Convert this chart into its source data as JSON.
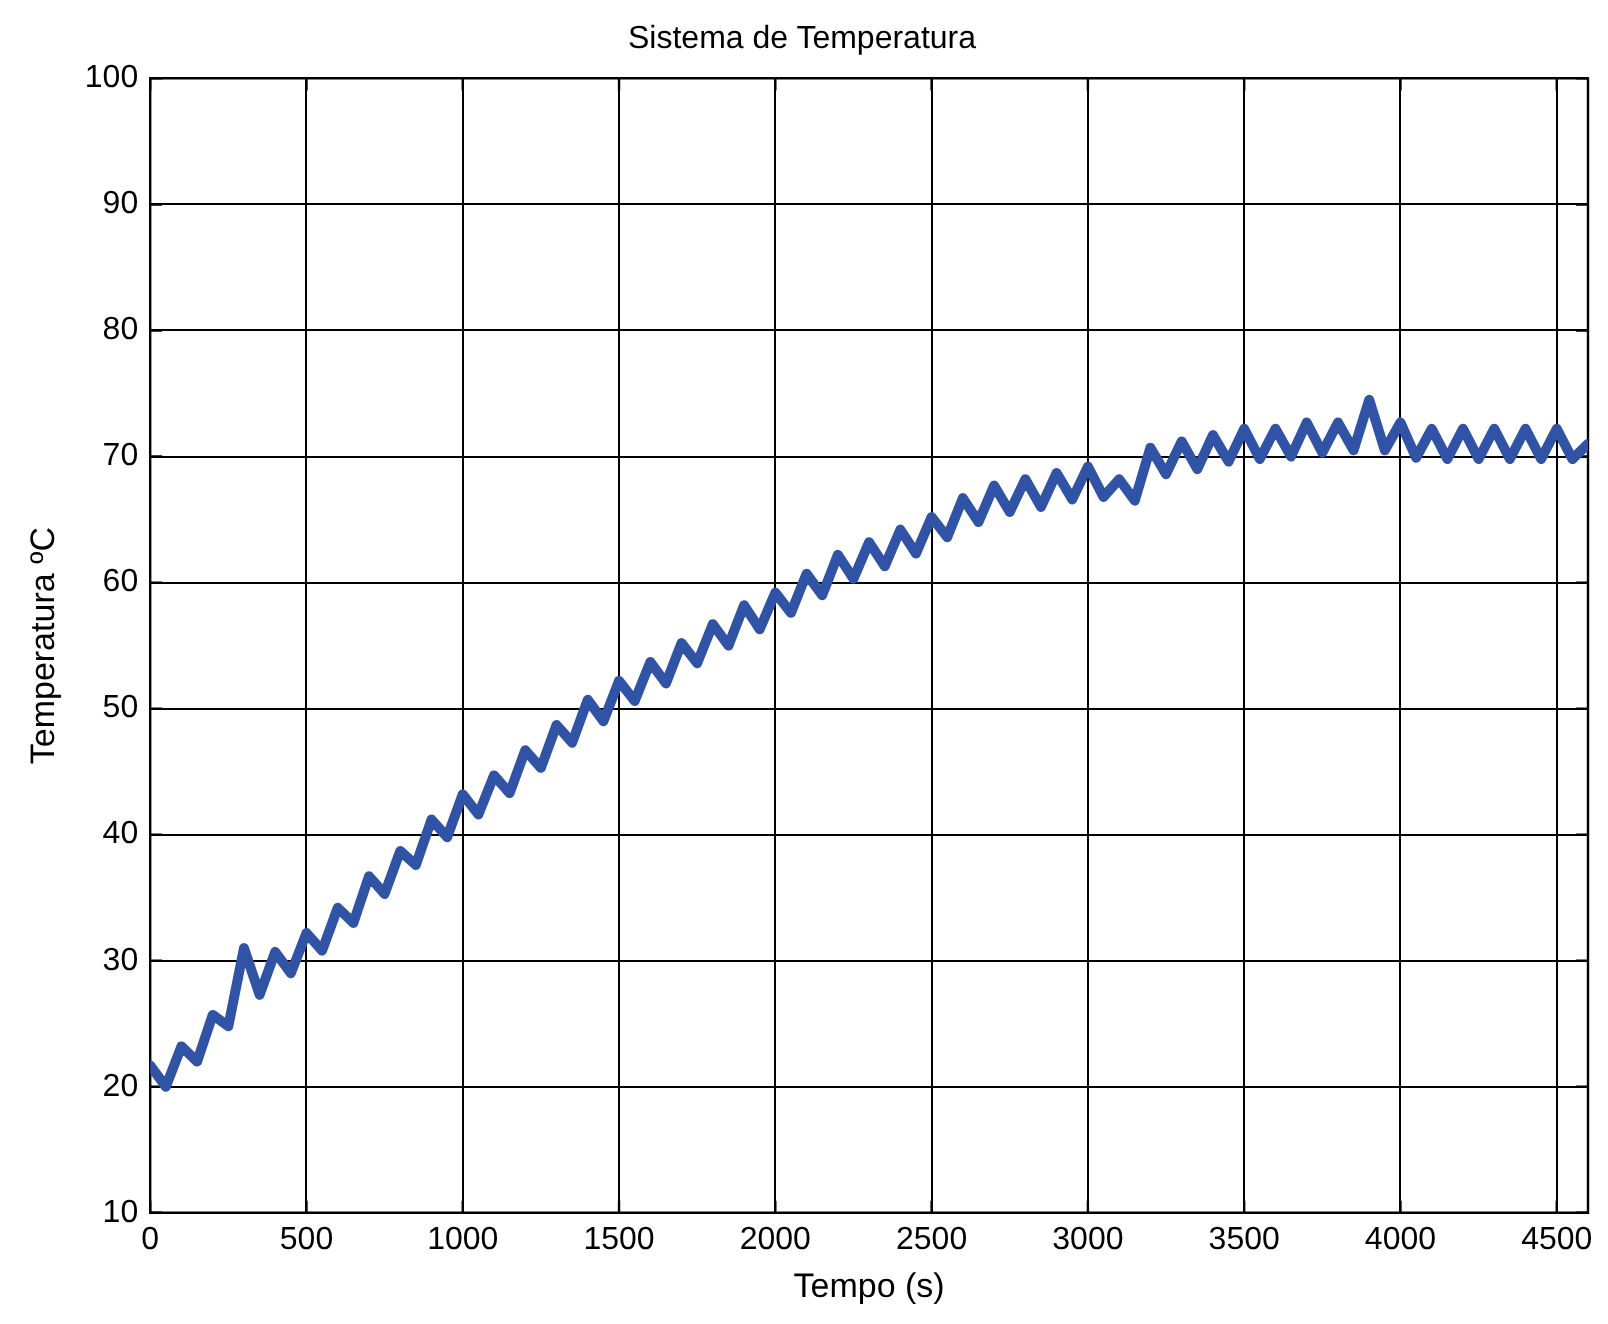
{
  "chart_data": {
    "type": "line",
    "title": "Sistema de Temperatura",
    "xlabel": "Tempo (s)",
    "ylabel": "Temperatura ºC",
    "x": [
      0,
      50,
      100,
      150,
      200,
      250,
      300,
      350,
      400,
      450,
      500,
      550,
      600,
      650,
      700,
      750,
      800,
      850,
      900,
      950,
      1000,
      1050,
      1100,
      1150,
      1200,
      1250,
      1300,
      1350,
      1400,
      1450,
      1500,
      1550,
      1600,
      1650,
      1700,
      1750,
      1800,
      1850,
      1900,
      1950,
      2000,
      2050,
      2100,
      2150,
      2200,
      2250,
      2300,
      2350,
      2400,
      2450,
      2500,
      2550,
      2600,
      2650,
      2700,
      2750,
      2800,
      2850,
      2900,
      2950,
      3000,
      3050,
      3100,
      3150,
      3200,
      3250,
      3300,
      3350,
      3400,
      3450,
      3500,
      3550,
      3600,
      3650,
      3700,
      3750,
      3800,
      3850,
      3900,
      3950,
      4000,
      4050,
      4100,
      4150,
      4200,
      4250,
      4300,
      4350,
      4400,
      4450,
      4500,
      4550,
      4600
    ],
    "series": [
      {
        "color": "#3053a5",
        "values": [
          21.7,
          20.0,
          23.2,
          22.0,
          25.7,
          24.8,
          31,
          27.3,
          30.7,
          29.0,
          32.2,
          30.8,
          34.2,
          33.0,
          36.7,
          35.3,
          38.7,
          37.6,
          41.2,
          39.8,
          43.2,
          41.6,
          44.7,
          43.3,
          46.7,
          45.3,
          48.7,
          47.3,
          50.7,
          49.0,
          52.2,
          50.6,
          53.7,
          52.0,
          55.2,
          53.6,
          56.7,
          55.0,
          58.2,
          56.3,
          59.2,
          57.6,
          60.7,
          59.0,
          62.2,
          60.3,
          63.2,
          61.3,
          64.2,
          62.3,
          65.2,
          63.6,
          66.7,
          64.8,
          67.7,
          65.6,
          68.2,
          66.0,
          68.7,
          66.6,
          69.2,
          66.8,
          68.2,
          66.5,
          70.7,
          68.6,
          71.2,
          69.0,
          71.7,
          69.6,
          72.2,
          69.8,
          72.2,
          70.0,
          72.7,
          70.3,
          72.7,
          70.5,
          74.5,
          70.5,
          72.7,
          69.9,
          72.2,
          69.8,
          72.2,
          69.8,
          72.2,
          69.8,
          72.2,
          69.8,
          72.2,
          69.8,
          71
        ]
      }
    ],
    "xlim": [
      0,
      4600
    ],
    "xticks": [
      0,
      500,
      1000,
      1500,
      2000,
      2500,
      3000,
      3500,
      4000,
      4500
    ],
    "ylim": [
      10,
      100
    ],
    "yticks": [
      10,
      20,
      30,
      40,
      50,
      60,
      70,
      80,
      90,
      100
    ],
    "grid": true,
    "legend": false,
    "marker": "none",
    "line_style": "solid"
  }
}
